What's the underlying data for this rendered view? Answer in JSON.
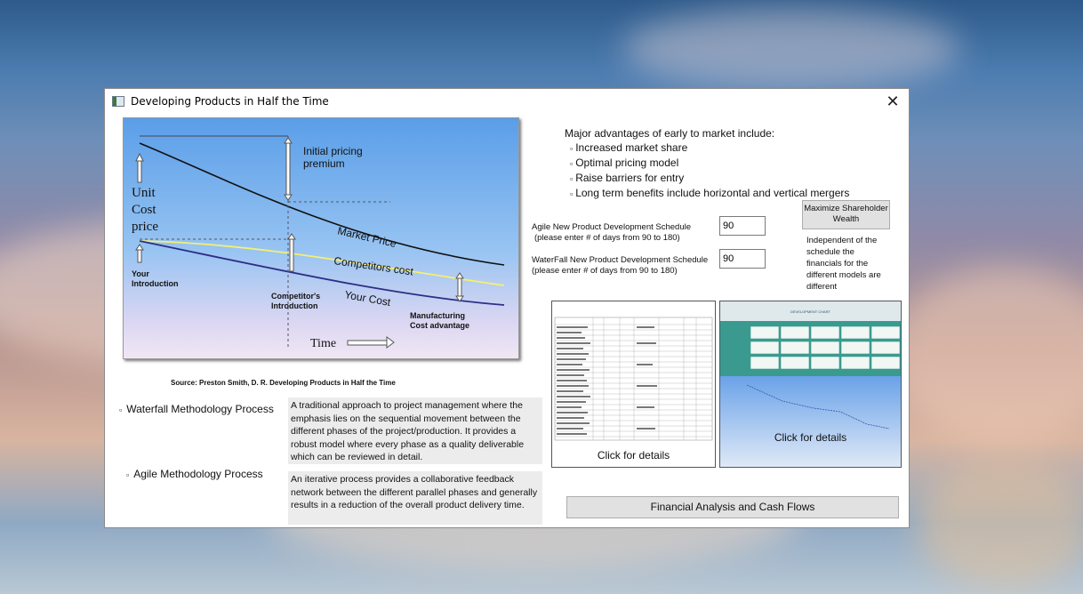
{
  "window": {
    "title": "Developing Products in Half the Time",
    "close_glyph": "✕"
  },
  "figure": {
    "left_axis": [
      "Unit",
      "Cost",
      "price"
    ],
    "initial_pricing": [
      "Initial pricing",
      "premium"
    ],
    "market_price": "Market Price",
    "competitors_cost": "Competitors cost",
    "your_cost": "Your Cost",
    "your_introduction": [
      "Your",
      "Introduction"
    ],
    "competitors_introduction": [
      "Competitor's",
      "Introduction"
    ],
    "manufacturing": [
      "Manufacturing",
      "Cost advantage"
    ],
    "time": "Time"
  },
  "source": "Source: Preston Smith, D. R. Developing Products in Half the Time",
  "advantages": {
    "heading": "Major advantages of early to market include:",
    "bullet": "▫",
    "items": [
      "Increased market share",
      "Optimal pricing model",
      "Raise barriers for entry",
      "Long term benefits include horizontal and vertical mergers"
    ]
  },
  "agile_schedule": {
    "label": "Agile New Product Development Schedule",
    "hint": "(please enter # of days from 90 to 180)",
    "value": "90"
  },
  "waterfall_schedule": {
    "label": "WaterFall New Product Development Schedule",
    "hint": "(please enter # of days from 90 to 180)",
    "value": "90"
  },
  "maximize_button": [
    "Maximize Shareholder",
    "Wealth"
  ],
  "note": "Independent of the schedule the financials for the different models are different",
  "thumb_left": {
    "caption": "Click for details"
  },
  "thumb_right": {
    "caption": "Click for details",
    "header": "DEVELOPMENT CHART"
  },
  "methods": {
    "bullet": "▫",
    "waterfall": {
      "label": "Waterfall Methodology Process",
      "description": "A traditional approach to project management where the emphasis lies on the sequential movement between the different phases of the project/production. It provides a robust model where every phase as a quality deliverable which can be reviewed in detail."
    },
    "agile": {
      "label": "Agile Methodology Process",
      "description": "An iterative process provides a collaborative feedback network between the different parallel phases and generally results in a reduction of the overall product delivery time."
    }
  },
  "financial_button": "Financial Analysis and Cash Flows"
}
